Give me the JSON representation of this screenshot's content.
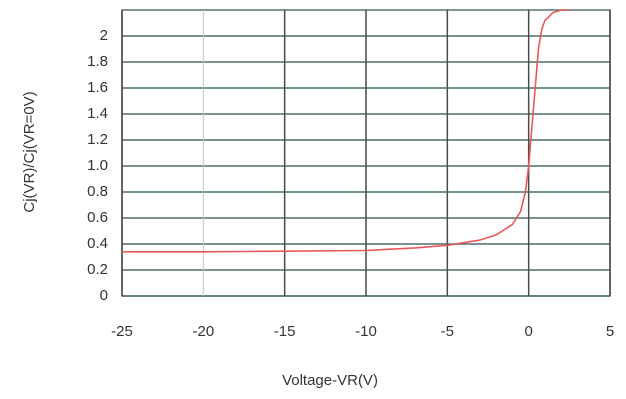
{
  "chart_data": {
    "type": "line",
    "xlabel": "Voltage-VR(V)",
    "ylabel": "Cj(VR)/Cj(VR=0V)",
    "x": [
      -25,
      -20,
      -15,
      -10,
      -7,
      -5,
      -3,
      -2,
      -1,
      -0.5,
      -0.2,
      0,
      0.2,
      0.4,
      0.6,
      0.8,
      1.0,
      1.5,
      2.0,
      2.5
    ],
    "series": [
      {
        "color": "#e8585a",
        "values": [
          0.34,
          0.34,
          0.345,
          0.35,
          0.37,
          0.39,
          0.43,
          0.47,
          0.55,
          0.65,
          0.8,
          1.0,
          1.3,
          1.6,
          1.9,
          2.05,
          2.12,
          2.18,
          2.2,
          2.2
        ]
      }
    ],
    "xlim": [
      -25,
      5
    ],
    "xticks": [
      -25,
      -20,
      -15,
      -10,
      -5,
      0,
      5
    ],
    "ylim": [
      0,
      2.2
    ],
    "yticks": [
      0,
      0.2,
      0.4,
      0.6,
      0.8,
      {
        "value": 1.0,
        "label": "1.0"
      },
      1.2,
      1.4,
      1.6,
      1.8,
      2
    ],
    "grid": true
  }
}
